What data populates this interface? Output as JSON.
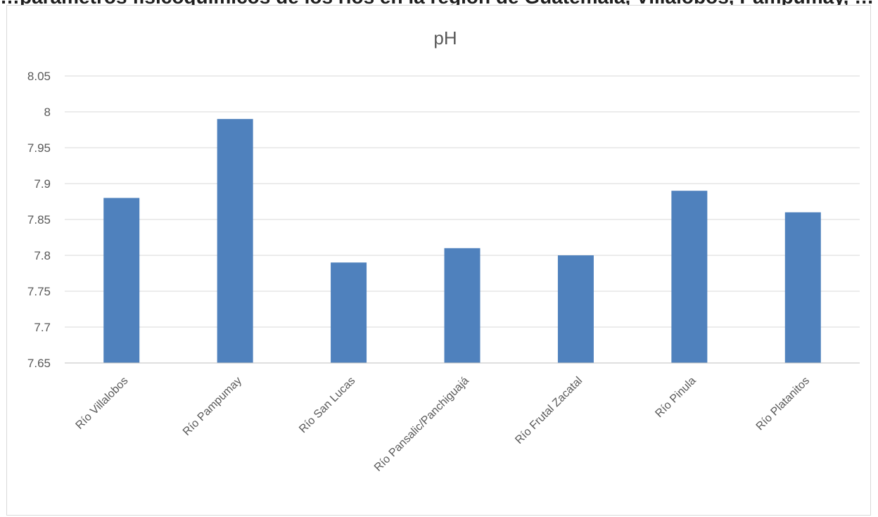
{
  "page": {
    "top_strip_text": "…parámetros fisicoquímicos de los ríos en la región de Guatemala, Villalobos, Pampumay, …"
  },
  "chart_data": {
    "type": "bar",
    "title": "pH",
    "xlabel": "",
    "ylabel": "",
    "categories": [
      "Río Villalobos",
      "Río Pampumay",
      "Río San Lucas",
      "Río Pansalic/Panchiguajá",
      "Río Frutal Zacatal",
      "Río Pinula",
      "Río Platanitos"
    ],
    "values": [
      7.88,
      7.99,
      7.79,
      7.81,
      7.8,
      7.89,
      7.86
    ],
    "ylim": [
      7.65,
      8.05
    ],
    "yticks": [
      7.65,
      7.7,
      7.75,
      7.8,
      7.85,
      7.9,
      7.95,
      8,
      8.05
    ],
    "ytick_labels": [
      "7.65",
      "7.7",
      "7.75",
      "7.8",
      "7.85",
      "7.9",
      "7.95",
      "8",
      "8.05"
    ],
    "grid": true,
    "legend": "none",
    "bar_color": "#4f81bd"
  }
}
